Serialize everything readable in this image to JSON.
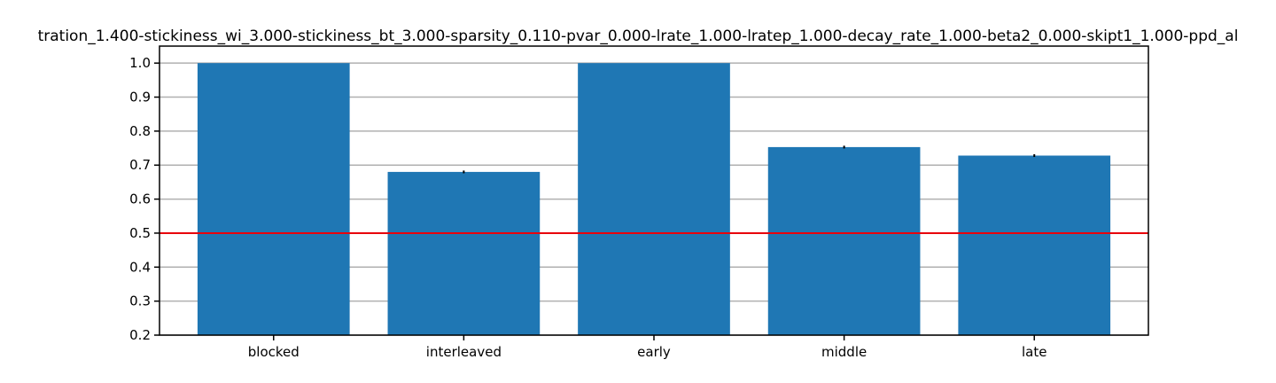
{
  "chart_data": {
    "type": "bar",
    "title": "tration_1.400-stickiness_wi_3.000-stickiness_bt_3.000-sparsity_0.110-pvar_0.000-lrate_1.000-lratep_1.000-decay_rate_1.000-beta2_0.000-skipt1_1.000-ppd_al",
    "xlabel": "",
    "ylabel": "",
    "categories": [
      "blocked",
      "interleaved",
      "early",
      "middle",
      "late"
    ],
    "values": [
      1.0,
      0.68,
      1.0,
      0.753,
      0.728
    ],
    "error": [
      0.0,
      0.004,
      0.0,
      0.004,
      0.004
    ],
    "ylim": [
      0.2,
      1.05
    ],
    "yticks": [
      0.2,
      0.3,
      0.4,
      0.5,
      0.6,
      0.7,
      0.8,
      0.9,
      1.0
    ],
    "ytick_labels": [
      "0.2",
      "0.3",
      "0.4",
      "0.5",
      "0.6",
      "0.7",
      "0.8",
      "0.9",
      "1.0"
    ],
    "reference_line": {
      "y": 0.5,
      "color": "#e8000b"
    },
    "bar_color": "#1f77b4",
    "grid": "y",
    "grid_color": "#b0b0b0",
    "legend": "none"
  }
}
